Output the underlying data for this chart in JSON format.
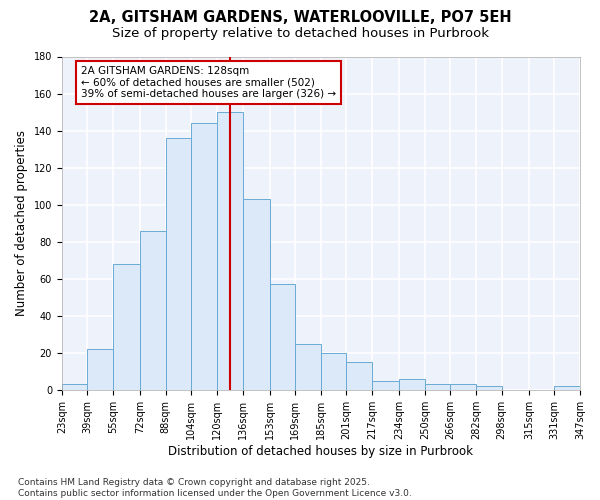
{
  "title_line1": "2A, GITSHAM GARDENS, WATERLOOVILLE, PO7 5EH",
  "title_line2": "Size of property relative to detached houses in Purbrook",
  "xlabel": "Distribution of detached houses by size in Purbrook",
  "ylabel": "Number of detached properties",
  "categories": [
    "23sqm",
    "39sqm",
    "55sqm",
    "72sqm",
    "88sqm",
    "104sqm",
    "120sqm",
    "136sqm",
    "153sqm",
    "169sqm",
    "185sqm",
    "201sqm",
    "217sqm",
    "234sqm",
    "250sqm",
    "266sqm",
    "282sqm",
    "298sqm",
    "315sqm",
    "331sqm",
    "347sqm"
  ],
  "bar_heights": [
    3,
    22,
    68,
    86,
    136,
    144,
    150,
    103,
    57,
    25,
    20,
    15,
    5,
    6,
    3,
    3,
    2,
    0,
    0,
    2
  ],
  "bin_edges": [
    23,
    39,
    55,
    72,
    88,
    104,
    120,
    136,
    153,
    169,
    185,
    201,
    217,
    234,
    250,
    266,
    282,
    298,
    315,
    331,
    347
  ],
  "bar_color_fill": "#dce9f8",
  "bar_color_edge": "#6aaad4",
  "reference_line_x": 128,
  "reference_line_color": "#cc0000",
  "annotation_text": "2A GITSHAM GARDENS: 128sqm\n← 60% of detached houses are smaller (502)\n39% of semi-detached houses are larger (326) →",
  "annotation_box_color": "#cc0000",
  "ylim": [
    0,
    180
  ],
  "yticks": [
    0,
    20,
    40,
    60,
    80,
    100,
    120,
    140,
    160,
    180
  ],
  "footnote": "Contains HM Land Registry data © Crown copyright and database right 2025.\nContains public sector information licensed under the Open Government Licence v3.0.",
  "bg_color": "#eef2fb",
  "grid_color": "#ffffff",
  "title_fontsize": 10.5,
  "subtitle_fontsize": 9.5,
  "axis_label_fontsize": 8.5,
  "tick_fontsize": 7,
  "annotation_fontsize": 7.5,
  "footnote_fontsize": 6.5
}
